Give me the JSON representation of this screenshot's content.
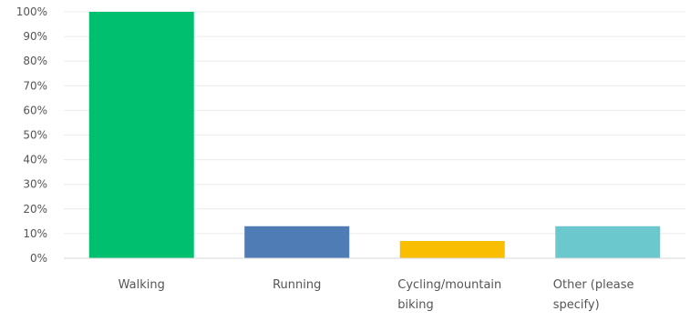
{
  "chart_data": {
    "type": "bar",
    "categories": [
      "Walking",
      "Running",
      "Cycling/mountain biking",
      "Other (please specify)"
    ],
    "category_lines": [
      [
        "Walking"
      ],
      [
        "Running"
      ],
      [
        "Cycling/mountain",
        "biking"
      ],
      [
        "Other (please",
        "specify)"
      ]
    ],
    "values": [
      100,
      13,
      7,
      13
    ],
    "colors": [
      "#00bf6f",
      "#507cb6",
      "#f9be00",
      "#6bc8cd"
    ],
    "yticks": [
      "0%",
      "10%",
      "20%",
      "30%",
      "40%",
      "50%",
      "60%",
      "70%",
      "80%",
      "90%",
      "100%"
    ],
    "ylim": [
      0,
      100
    ],
    "grid": true,
    "gridline_color": "#ececec",
    "axis_color": "#d9d9d9",
    "text_color": "#555555",
    "title": "",
    "xlabel": "",
    "ylabel": ""
  }
}
